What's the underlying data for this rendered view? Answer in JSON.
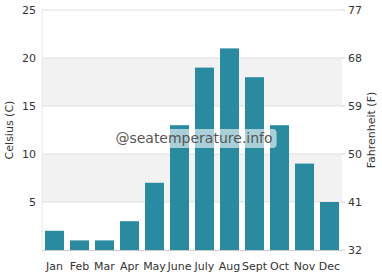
{
  "chart_data": {
    "type": "bar",
    "categories": [
      "Jan",
      "Feb",
      "Mar",
      "Apr",
      "May",
      "June",
      "July",
      "Aug",
      "Sept",
      "Oct",
      "Nov",
      "Dec"
    ],
    "values": [
      2,
      1,
      1,
      3,
      7,
      13,
      19,
      21,
      18,
      13,
      9,
      5
    ],
    "color": "#2a8aa0",
    "y_label": "Celsius (C)",
    "y2_label": "Fahrenheit (F)",
    "ylim": [
      0,
      25
    ],
    "yticks": [
      5,
      10,
      15,
      20,
      25
    ],
    "y2lim": [
      32,
      77
    ],
    "y2ticks": [
      32,
      41,
      50,
      59,
      68,
      77
    ],
    "grid": true,
    "annotations": [
      "@seatemperature.info"
    ]
  }
}
